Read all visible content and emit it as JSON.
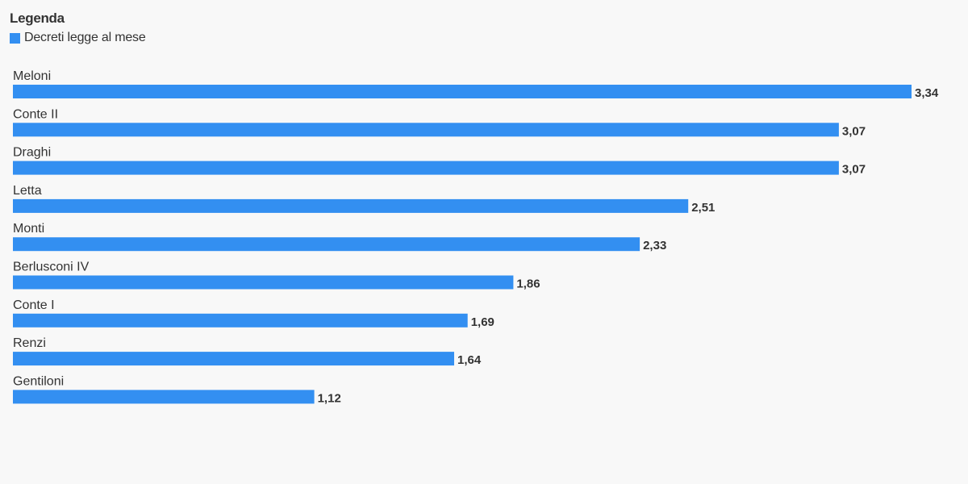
{
  "legend": {
    "title": "Legenda",
    "items": [
      {
        "label": "Decreti legge al mese",
        "color": "#338ff1"
      }
    ]
  },
  "chart_data": {
    "type": "bar",
    "orientation": "horizontal",
    "title": "",
    "xlabel": "",
    "ylabel": "",
    "categories": [
      "Meloni",
      "Conte II",
      "Draghi",
      "Letta",
      "Monti",
      "Berlusconi IV",
      "Conte I",
      "Renzi",
      "Gentiloni"
    ],
    "series": [
      {
        "name": "Decreti legge al mese",
        "color": "#338ff1",
        "values": [
          3.34,
          3.07,
          3.07,
          2.51,
          2.33,
          1.86,
          1.69,
          1.64,
          1.12
        ],
        "value_labels": [
          "3,34",
          "3,07",
          "3,07",
          "2,51",
          "2,33",
          "1,86",
          "1,69",
          "1,64",
          "1,12"
        ]
      }
    ],
    "xlim": [
      0,
      3.34
    ],
    "grid": false,
    "legend_position": "top-left"
  }
}
